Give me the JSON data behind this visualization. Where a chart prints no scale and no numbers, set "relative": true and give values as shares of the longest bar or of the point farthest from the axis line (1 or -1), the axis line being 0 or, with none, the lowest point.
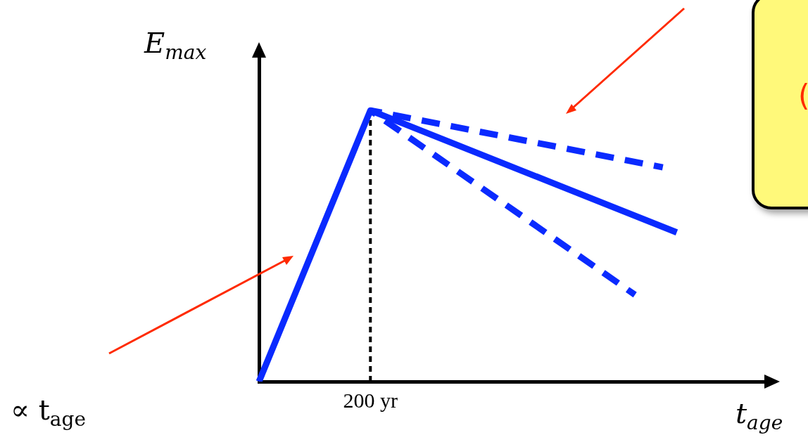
{
  "chart_data": {
    "type": "line",
    "relative": true,
    "xlabel": "t$_{age}$",
    "ylabel": "E$_{max}$",
    "marker": "none",
    "categories": [
      null,
      null,
      null,
      null,
      null,
      null,
      null,
      null,
      null,
      null,
      null,
      null,
      null,
      null,
      null,
      null,
      null,
      null,
      null,
      null,
      null,
      null,
      null,
      null,
      null,
      null,
      null,
      null,
      null,
      null,
      null,
      null,
      null,
      null,
      null,
      null,
      null,
      null
    ],
    "series": [
      {
        "color": "#0a2aff",
        "line_style": "solid",
        "values": [
          0,
          null,
          null,
          null,
          null,
          null,
          null,
          null,
          1,
          null,
          null,
          null,
          null,
          null,
          null,
          null,
          null,
          null,
          null,
          null,
          null,
          null,
          null,
          null,
          null,
          null,
          null,
          null,
          null,
          null,
          0.55,
          null,
          null,
          null,
          null,
          null,
          null,
          null
        ]
      },
      {
        "color": "#0a2aff",
        "line_style": "dashed",
        "values": [
          null,
          null,
          null,
          null,
          null,
          null,
          null,
          null,
          1,
          null,
          null,
          null,
          null,
          null,
          null,
          null,
          null,
          null,
          null,
          null,
          null,
          null,
          null,
          null,
          null,
          null,
          null,
          null,
          null,
          0.79,
          null,
          null,
          null,
          null,
          null,
          null,
          null,
          null
        ]
      },
      {
        "color": "#0a2aff",
        "line_style": "dashed",
        "values": [
          null,
          null,
          null,
          null,
          null,
          null,
          null,
          null,
          1,
          null,
          null,
          null,
          null,
          null,
          null,
          null,
          null,
          null,
          null,
          null,
          null,
          null,
          null,
          null,
          null,
          null,
          null,
          0.32,
          null,
          null,
          null,
          null,
          null,
          null,
          null,
          null,
          null,
          null
        ]
      }
    ],
    "annotations": [
      "200 yr",
      "∝  t$_{age}$",
      "("
    ]
  }
}
